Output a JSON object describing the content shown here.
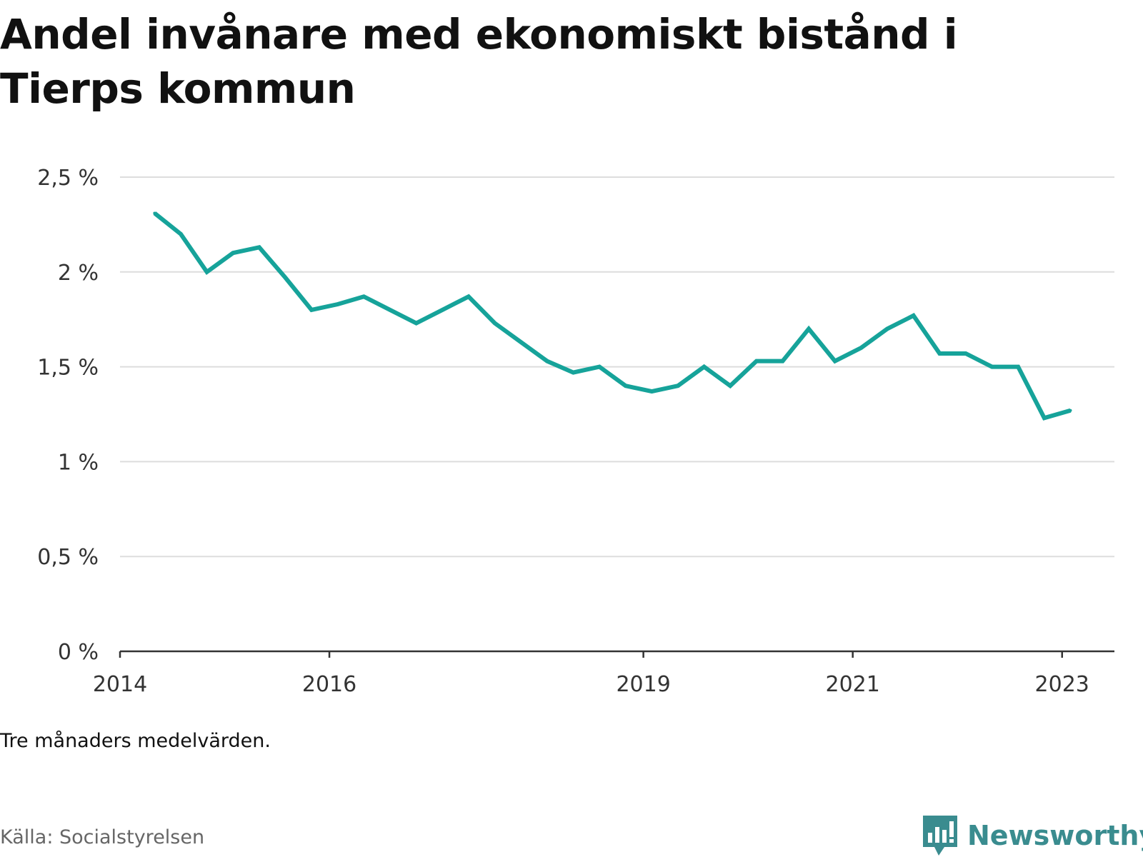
{
  "title": "Andel invånare med ekonomiskt bistånd i Tierps kommun",
  "note": "Tre månaders medelvärden.",
  "source": "Källa: Socialstyrelsen",
  "brand": "Newsworthy",
  "colors": {
    "line": "#16a39a",
    "grid": "#dddddd",
    "axis": "#333333",
    "brand": "#3a8c8f"
  },
  "icons": {
    "brand_logo": "bar-chart-speech-bubble-icon"
  },
  "chart_data": {
    "type": "line",
    "xlabel": "",
    "ylabel": "",
    "xlim": [
      2014.0,
      2023.5
    ],
    "ylim": [
      0,
      2.5
    ],
    "x_ticks": [
      {
        "value": 2014,
        "label": "2014"
      },
      {
        "value": 2016,
        "label": "2016"
      },
      {
        "value": 2019,
        "label": "2019"
      },
      {
        "value": 2021,
        "label": "2021"
      },
      {
        "value": 2023,
        "label": "2023"
      }
    ],
    "y_ticks": [
      {
        "value": 0,
        "label": "0 %"
      },
      {
        "value": 0.5,
        "label": "0,5 %"
      },
      {
        "value": 1,
        "label": "1 %"
      },
      {
        "value": 1.5,
        "label": "1,5 %"
      },
      {
        "value": 2,
        "label": "2 %"
      },
      {
        "value": 2.5,
        "label": "2,5 %"
      }
    ],
    "grid": true,
    "series": [
      {
        "x": [
          2014.33,
          2014.58,
          2014.83,
          2015.08,
          2015.33,
          2015.58,
          2015.83,
          2016.08,
          2016.33,
          2016.58,
          2016.83,
          2017.08,
          2017.33,
          2017.58,
          2017.83,
          2018.08,
          2018.33,
          2018.58,
          2018.83,
          2019.08,
          2019.33,
          2019.58,
          2019.83,
          2020.08,
          2020.33,
          2020.58,
          2020.83,
          2021.08,
          2021.33,
          2021.58,
          2021.83,
          2022.08,
          2022.33,
          2022.58,
          2022.83,
          2023.08
        ],
        "values": [
          2.31,
          2.2,
          2.0,
          2.1,
          2.13,
          1.97,
          1.8,
          1.83,
          1.87,
          1.8,
          1.73,
          1.8,
          1.87,
          1.73,
          1.63,
          1.53,
          1.47,
          1.5,
          1.4,
          1.37,
          1.4,
          1.5,
          1.4,
          1.53,
          1.53,
          1.7,
          1.53,
          1.6,
          1.7,
          1.77,
          1.57,
          1.57,
          1.5,
          1.5,
          1.23,
          1.27
        ]
      }
    ]
  }
}
